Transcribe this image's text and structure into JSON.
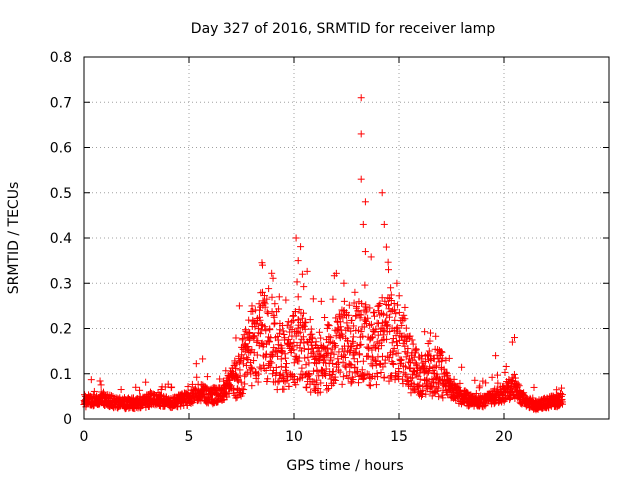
{
  "chart_data": {
    "type": "scatter",
    "title": "Day 327 of 2016, SRMTID for receiver lamp",
    "xlabel": "GPS time / hours",
    "ylabel": "SRMTID / TECUs",
    "xlim": [
      0,
      25
    ],
    "ylim": [
      0,
      0.8
    ],
    "xticks": [
      "0",
      "5",
      "10",
      "15",
      "20"
    ],
    "xtick_values": [
      0,
      5,
      10,
      15,
      20
    ],
    "yticks": [
      "0",
      "0.1",
      "0.2",
      "0.3",
      "0.4",
      "0.5",
      "0.6",
      "0.7",
      "0.8"
    ],
    "ytick_values": [
      0,
      0.1,
      0.2,
      0.3,
      0.4,
      0.5,
      0.6,
      0.7,
      0.8
    ],
    "grid": true,
    "marker": "+",
    "marker_color": "#ff0000",
    "profile": {
      "x": [
        0,
        0.5,
        1,
        1.5,
        2,
        2.5,
        3,
        3.5,
        4,
        4.5,
        5,
        5.5,
        6,
        6.5,
        7,
        7.5,
        8,
        8.5,
        9,
        9.5,
        10,
        10.5,
        11,
        11.5,
        12,
        12.5,
        13,
        13.5,
        14,
        14.5,
        15,
        15.5,
        16,
        16.5,
        17,
        17.5,
        18,
        18.5,
        19,
        19.5,
        20,
        20.5,
        21,
        21.5,
        22,
        22.5,
        22.8
      ],
      "y": [
        0.04,
        0.04,
        0.045,
        0.035,
        0.035,
        0.035,
        0.04,
        0.045,
        0.035,
        0.04,
        0.045,
        0.06,
        0.05,
        0.055,
        0.08,
        0.11,
        0.16,
        0.19,
        0.15,
        0.13,
        0.16,
        0.15,
        0.12,
        0.13,
        0.15,
        0.16,
        0.17,
        0.16,
        0.17,
        0.18,
        0.18,
        0.12,
        0.09,
        0.1,
        0.1,
        0.06,
        0.05,
        0.04,
        0.04,
        0.05,
        0.06,
        0.07,
        0.04,
        0.03,
        0.035,
        0.04,
        0.05
      ]
    },
    "peaks": [
      {
        "x": 13.2,
        "y": 0.71
      },
      {
        "x": 13.2,
        "y": 0.63
      },
      {
        "x": 13.2,
        "y": 0.53
      },
      {
        "x": 14.2,
        "y": 0.5
      },
      {
        "x": 13.4,
        "y": 0.48
      },
      {
        "x": 13.3,
        "y": 0.43
      },
      {
        "x": 14.3,
        "y": 0.43
      },
      {
        "x": 10.1,
        "y": 0.4
      },
      {
        "x": 14.4,
        "y": 0.38
      },
      {
        "x": 13.4,
        "y": 0.37
      },
      {
        "x": 10.2,
        "y": 0.35
      },
      {
        "x": 8.5,
        "y": 0.34
      },
      {
        "x": 14.5,
        "y": 0.33
      },
      {
        "x": 10.4,
        "y": 0.32
      },
      {
        "x": 14.9,
        "y": 0.3
      },
      {
        "x": 8.5,
        "y": 0.28
      },
      {
        "x": 14.6,
        "y": 0.29
      },
      {
        "x": 12.9,
        "y": 0.28
      },
      {
        "x": 10.2,
        "y": 0.27
      },
      {
        "x": 9.3,
        "y": 0.27
      },
      {
        "x": 11.3,
        "y": 0.26
      },
      {
        "x": 12.4,
        "y": 0.26
      },
      {
        "x": 8.0,
        "y": 0.25
      },
      {
        "x": 7.4,
        "y": 0.25
      },
      {
        "x": 16.5,
        "y": 0.19
      },
      {
        "x": 20.5,
        "y": 0.18
      },
      {
        "x": 20.4,
        "y": 0.17
      },
      {
        "x": 19.6,
        "y": 0.14
      }
    ]
  }
}
